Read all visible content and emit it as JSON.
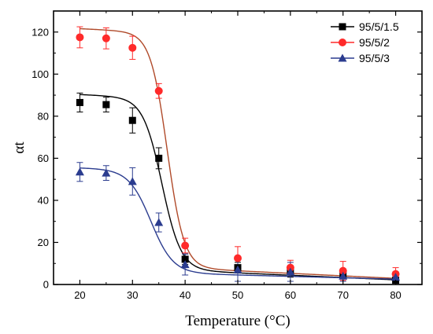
{
  "chart_data": {
    "type": "scatter",
    "xlabel": "Temperature (°C)",
    "ylabel": "αt",
    "xlim": [
      15,
      85
    ],
    "ylim": [
      0,
      130
    ],
    "xticks": [
      20,
      30,
      40,
      50,
      60,
      70,
      80
    ],
    "yticks": [
      0,
      20,
      40,
      60,
      80,
      100,
      120
    ],
    "x_minor_ticks": [
      25,
      35,
      45,
      55,
      65,
      75
    ],
    "y_minor_ticks": [
      10,
      30,
      50,
      70,
      90,
      110
    ],
    "grid": false,
    "legend_position": "top-right",
    "x": [
      20,
      25,
      30,
      35,
      40,
      50,
      60,
      70,
      80
    ],
    "series": [
      {
        "name": "95/5/1.5",
        "marker": "square",
        "color": "#000000",
        "curve_color": "#000000",
        "values": [
          86.5,
          85.5,
          78,
          60,
          12,
          8,
          6,
          5,
          2
        ],
        "errors": [
          4.5,
          3.5,
          6,
          5,
          2.5,
          2.5,
          2.5,
          2,
          2
        ],
        "fit": {
          "top": 87,
          "bottom": 5.5,
          "x0": 35.6,
          "width": 1.8,
          "tail_slope": -0.11
        }
      },
      {
        "name": "95/5/2",
        "marker": "circle",
        "color": "#ff2a2a",
        "curve_color": "#b04a2a",
        "values": [
          117.5,
          117,
          112.5,
          92,
          18.5,
          12.5,
          8,
          6.5,
          5
        ],
        "errors": [
          5,
          5,
          5.5,
          3.5,
          3.5,
          5.5,
          3.5,
          4.5,
          3
        ],
        "fit": {
          "top": 118,
          "bottom": 6.5,
          "x0": 36.6,
          "width": 1.6,
          "tail_slope": -0.12
        }
      },
      {
        "name": "95/5/3",
        "marker": "triangle",
        "color": "#2b3c8f",
        "curve_color": "#2b3c8f",
        "values": [
          53.5,
          53,
          49,
          29.5,
          9.5,
          7,
          6,
          4,
          3.5
        ],
        "errors": [
          4.5,
          3.5,
          6.5,
          4.5,
          5,
          5.5,
          4.5,
          2.5,
          2.5
        ],
        "fit": {
          "top": 53.5,
          "bottom": 4.5,
          "x0": 33.5,
          "width": 2.1,
          "tail_slope": -0.065
        }
      }
    ]
  }
}
